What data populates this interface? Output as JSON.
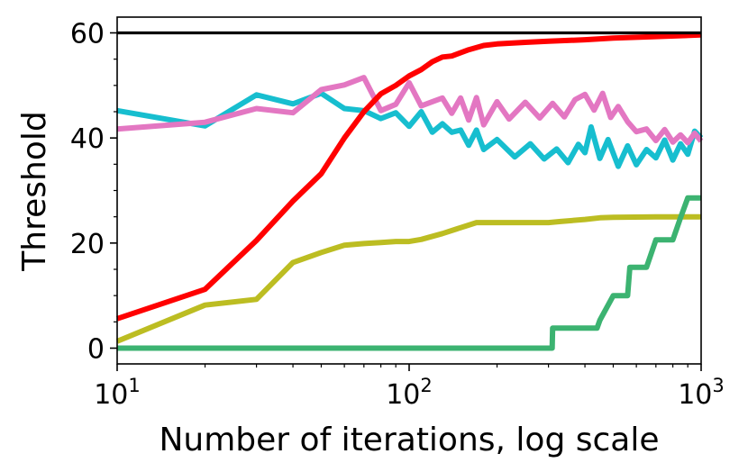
{
  "chart_data": {
    "type": "line",
    "title": "",
    "xlabel": "Number of iterations, log scale",
    "ylabel": "Threshold",
    "x_scale": "log",
    "xlim": [
      10,
      1000
    ],
    "ylim": [
      -3,
      63
    ],
    "x_ticks": [
      {
        "value": 10,
        "base": "10",
        "exp": "1"
      },
      {
        "value": 100,
        "base": "10",
        "exp": "2"
      },
      {
        "value": 1000,
        "base": "10",
        "exp": "3"
      }
    ],
    "y_ticks": [
      0,
      20,
      40,
      60
    ],
    "y_minor_ticks": [
      5,
      10,
      15,
      25,
      30,
      35,
      45,
      50,
      55
    ],
    "grid": false,
    "legend": "none",
    "reference_line": {
      "y": 60,
      "color": "#000000"
    },
    "series": [
      {
        "color": "#17becf",
        "x": [
          10,
          20,
          30,
          40,
          50,
          60,
          70,
          80,
          90,
          100,
          110,
          120,
          130,
          140,
          150,
          160,
          170,
          180,
          200,
          230,
          260,
          290,
          320,
          350,
          380,
          400,
          420,
          450,
          480,
          520,
          560,
          600,
          650,
          700,
          750,
          800,
          850,
          900,
          950,
          1000
        ],
        "y": [
          45.2,
          42.3,
          48.2,
          46.5,
          48.5,
          45.6,
          45.2,
          43.7,
          44.8,
          42.2,
          45.0,
          41.1,
          42.7,
          41.1,
          41.5,
          38.6,
          41.5,
          37.8,
          39.7,
          36.4,
          38.9,
          36.0,
          37.9,
          35.3,
          38.8,
          37.2,
          42.1,
          36.1,
          39.7,
          34.6,
          38.5,
          34.9,
          37.8,
          36.2,
          39.6,
          35.8,
          38.9,
          36.9,
          41.3,
          40.0
        ]
      },
      {
        "color": "#e377c2",
        "x": [
          10,
          20,
          30,
          40,
          50,
          60,
          70,
          80,
          90,
          100,
          110,
          120,
          130,
          140,
          150,
          160,
          170,
          180,
          200,
          220,
          250,
          280,
          310,
          340,
          370,
          400,
          430,
          460,
          490,
          520,
          560,
          600,
          650,
          700,
          750,
          800,
          850,
          900,
          950,
          1000
        ],
        "y": [
          41.7,
          43.0,
          45.6,
          44.8,
          49.2,
          50.1,
          51.5,
          45.2,
          46.4,
          50.5,
          46.1,
          46.9,
          47.6,
          44.7,
          47.6,
          43.4,
          47.7,
          42.5,
          46.9,
          43.6,
          46.8,
          43.8,
          46.6,
          44.0,
          47.3,
          48.3,
          45.3,
          48.5,
          43.9,
          46.0,
          43.1,
          41.2,
          41.7,
          39.5,
          41.6,
          39.2,
          40.6,
          39.1,
          40.9,
          39.4
        ]
      },
      {
        "color": "#ff0000",
        "x": [
          10,
          20,
          30,
          40,
          50,
          60,
          70,
          80,
          90,
          100,
          110,
          120,
          130,
          140,
          160,
          180,
          200,
          250,
          300,
          400,
          500,
          700,
          1000
        ],
        "y": [
          5.6,
          11.2,
          20.5,
          28.0,
          33.2,
          40.0,
          45.0,
          48.4,
          50.0,
          51.8,
          53.0,
          54.5,
          55.4,
          55.6,
          56.8,
          57.6,
          57.9,
          58.2,
          58.4,
          58.7,
          59.0,
          59.3,
          59.6
        ]
      },
      {
        "color": "#bcbd22",
        "x": [
          10,
          20,
          30,
          40,
          50,
          60,
          70,
          80,
          90,
          100,
          110,
          130,
          170,
          300,
          330,
          400,
          450,
          500,
          700,
          1000
        ],
        "y": [
          1.3,
          8.2,
          9.3,
          16.3,
          18.2,
          19.6,
          19.9,
          20.1,
          20.3,
          20.3,
          20.7,
          21.8,
          23.9,
          23.9,
          24.1,
          24.5,
          24.8,
          24.9,
          25.0,
          25.0
        ]
      },
      {
        "color": "#3cb371",
        "x": [
          10,
          100,
          200,
          309,
          310,
          400,
          440,
          450,
          500,
          560,
          570,
          650,
          700,
          750,
          800,
          850,
          900,
          950,
          1000
        ],
        "y": [
          0,
          0,
          0,
          0,
          3.8,
          3.8,
          3.8,
          5.3,
          10.0,
          10.0,
          15.4,
          15.4,
          20.6,
          20.6,
          20.6,
          24.8,
          28.6,
          28.6,
          28.6
        ]
      }
    ]
  }
}
